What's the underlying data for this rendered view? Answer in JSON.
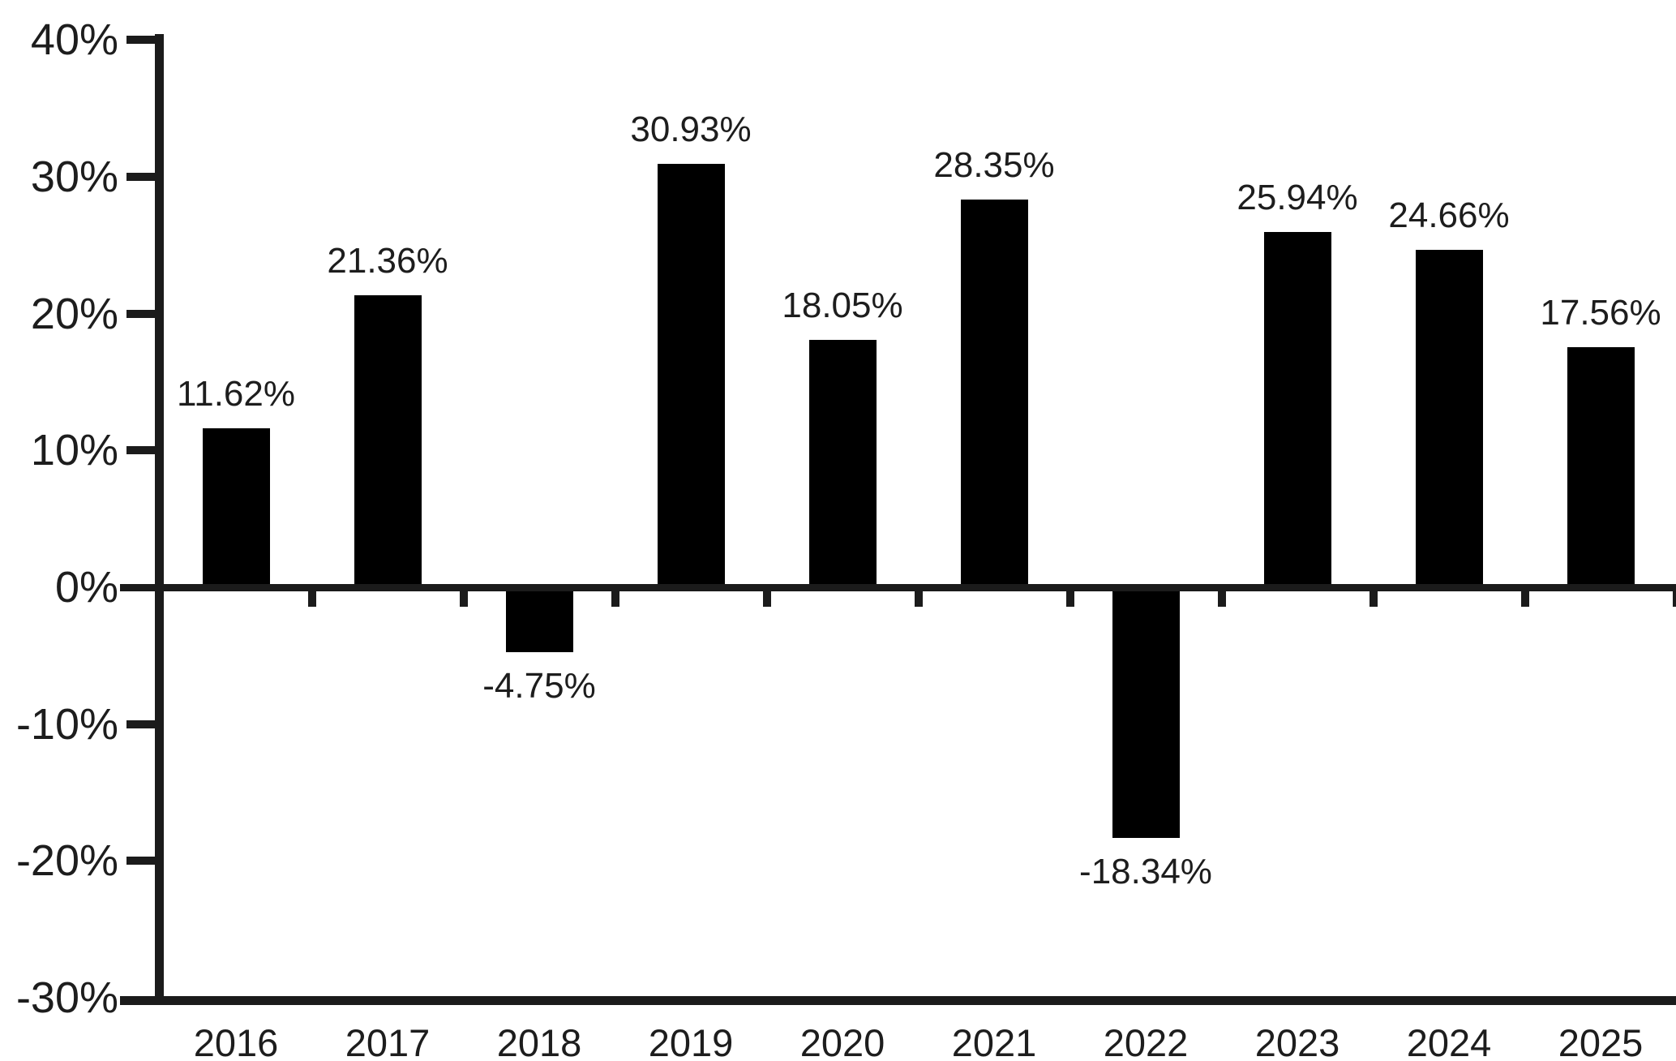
{
  "chart_data": {
    "type": "bar",
    "categories": [
      "2016",
      "2017",
      "2018",
      "2019",
      "2020",
      "2021",
      "2022",
      "2023",
      "2024",
      "2025"
    ],
    "values": [
      11.62,
      21.36,
      -4.75,
      30.93,
      18.05,
      28.35,
      -18.34,
      25.94,
      24.66,
      17.56
    ],
    "value_labels": [
      "11.62%",
      "21.36%",
      "-4.75%",
      "30.93%",
      "18.05%",
      "28.35%",
      "-18.34%",
      "25.94%",
      "24.66%",
      "17.56%"
    ],
    "title": "",
    "xlabel": "",
    "ylabel": "",
    "ylim": [
      -30,
      40
    ],
    "y_tick_values": [
      40,
      30,
      20,
      10,
      0,
      -10,
      -20,
      -30
    ],
    "y_ticks": [
      "40%",
      "30%",
      "20%",
      "10%",
      "0%",
      "-10%",
      "-20%",
      "-30%"
    ],
    "grid": false,
    "legend": "none",
    "bar_color": "#000000",
    "axis_color": "#1b1b1b",
    "text_color": "#1d1d1d",
    "background": "#ffffff"
  }
}
